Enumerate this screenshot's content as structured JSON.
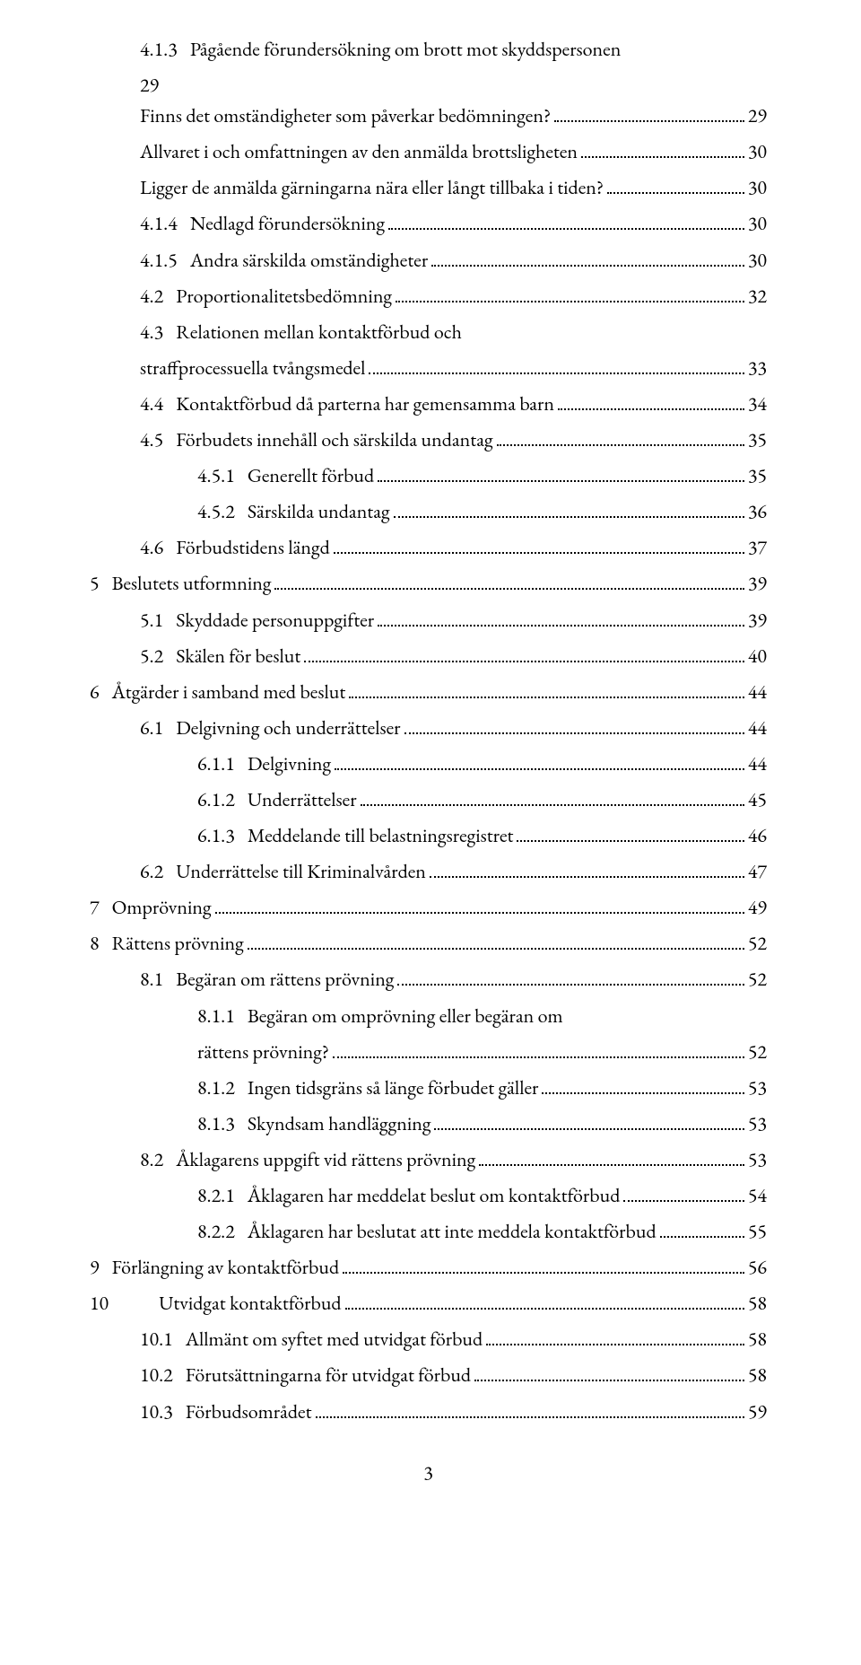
{
  "toc": [
    {
      "level": 1,
      "num": "4.1.3",
      "label": "Pågående förundersökning om brott mot skyddspersonen",
      "secondLine": "29",
      "page": null
    },
    {
      "level": 1,
      "num": "",
      "label": "Finns det omständigheter som påverkar bedömningen?",
      "page": "29"
    },
    {
      "level": 1,
      "num": "",
      "label": "Allvaret i och omfattningen av den anmälda brottsligheten",
      "page": "30"
    },
    {
      "level": 1,
      "num": "",
      "label": "Ligger de anmälda gärningarna nära eller långt tillbaka i tiden?",
      "page": "30"
    },
    {
      "level": 1,
      "num": "4.1.4",
      "label": "Nedlagd förundersökning",
      "page": "30"
    },
    {
      "level": 1,
      "num": "4.1.5",
      "label": "Andra särskilda omständigheter",
      "page": "30"
    },
    {
      "level": 1,
      "num": "4.2",
      "label": "Proportionalitetsbedömning",
      "page": "32"
    },
    {
      "level": 1,
      "num": "4.3",
      "label": "Relationen mellan kontaktförbud och straffprocessuella tvångsmedel",
      "page": "33",
      "wrap": true
    },
    {
      "level": 1,
      "num": "4.4",
      "label": "Kontaktförbud då parterna har gemensamma barn",
      "page": "34"
    },
    {
      "level": 1,
      "num": "4.5",
      "label": "Förbudets innehåll och särskilda undantag",
      "page": "35"
    },
    {
      "level": 2,
      "num": "4.5.1",
      "label": "Generellt förbud",
      "page": "35"
    },
    {
      "level": 2,
      "num": "4.5.2",
      "label": "Särskilda undantag",
      "page": "36"
    },
    {
      "level": 1,
      "num": "4.6",
      "label": "Förbudstidens längd",
      "page": "37"
    },
    {
      "level": 0,
      "num": "5",
      "label": "Beslutets utformning",
      "page": "39"
    },
    {
      "level": 1,
      "num": "5.1",
      "label": "Skyddade personuppgifter",
      "page": "39"
    },
    {
      "level": 1,
      "num": "5.2",
      "label": "Skälen för beslut",
      "page": "40"
    },
    {
      "level": 0,
      "num": "6",
      "label": "Åtgärder i samband med beslut",
      "page": "44"
    },
    {
      "level": 1,
      "num": "6.1",
      "label": "Delgivning och underrättelser",
      "page": "44"
    },
    {
      "level": 2,
      "num": "6.1.1",
      "label": "Delgivning",
      "page": "44"
    },
    {
      "level": 2,
      "num": "6.1.2",
      "label": "Underrättelser",
      "page": "45"
    },
    {
      "level": 2,
      "num": "6.1.3",
      "label": "Meddelande till belastningsregistret",
      "page": "46"
    },
    {
      "level": 1,
      "num": "6.2",
      "label": "Underrättelse till Kriminalvården",
      "page": "47"
    },
    {
      "level": 0,
      "num": "7",
      "label": "Omprövning",
      "page": "49"
    },
    {
      "level": 0,
      "num": "8",
      "label": "Rättens prövning",
      "page": "52"
    },
    {
      "level": 1,
      "num": "8.1",
      "label": "Begäran om rättens prövning",
      "page": "52"
    },
    {
      "level": 2,
      "num": "8.1.1",
      "label": "Begäran om omprövning eller begäran om rättens prövning?",
      "page": "52",
      "wrap": true
    },
    {
      "level": 2,
      "num": "8.1.2",
      "label": "Ingen tidsgräns så länge förbudet gäller",
      "page": "53"
    },
    {
      "level": 2,
      "num": "8.1.3",
      "label": "Skyndsam handläggning",
      "page": "53"
    },
    {
      "level": 1,
      "num": "8.2",
      "label": "Åklagarens uppgift vid rättens prövning",
      "page": "53"
    },
    {
      "level": 2,
      "num": "8.2.1",
      "label": "Åklagaren har meddelat beslut om kontaktförbud",
      "page": "54"
    },
    {
      "level": 2,
      "num": "8.2.2",
      "label": "Åklagaren har beslutat att inte meddela kontaktförbud",
      "page": "55"
    },
    {
      "level": 0,
      "num": "9",
      "label": "Förlängning av kontaktförbud",
      "page": "56"
    },
    {
      "level": 0,
      "num": "10",
      "label": "Utvidgat kontaktförbud",
      "page": "58",
      "tabAfterNum": true
    },
    {
      "level": 1,
      "num": "10.1",
      "label": "Allmänt om syftet med utvidgat förbud",
      "page": "58"
    },
    {
      "level": 1,
      "num": "10.2",
      "label": "Förutsättningarna för utvidgat förbud",
      "page": "58"
    },
    {
      "level": 1,
      "num": "10.3",
      "label": "Förbudsområdet",
      "page": "59"
    }
  ],
  "pageNumber": "3"
}
